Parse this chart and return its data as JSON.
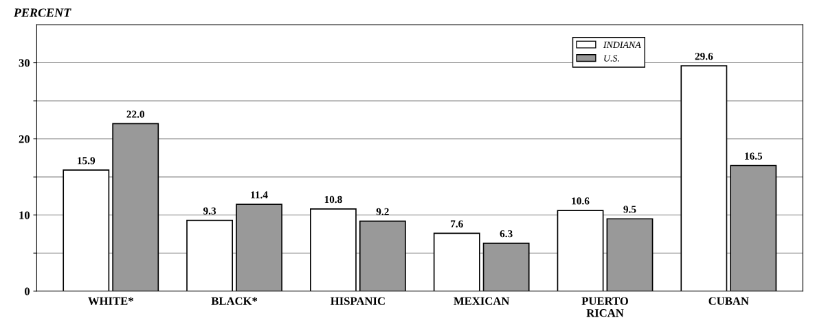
{
  "chart_data": {
    "type": "bar",
    "ylabel": "PERCENT",
    "categories": [
      "WHITE*",
      "BLACK*",
      "HISPANIC",
      "MEXICAN",
      "PUERTO\nRICAN",
      "CUBAN"
    ],
    "series": [
      {
        "name": "INDIANA",
        "color": "#ffffff",
        "values": [
          15.9,
          9.3,
          10.8,
          7.6,
          10.6,
          29.6
        ]
      },
      {
        "name": "U.S.",
        "color": "#999999",
        "values": [
          22.0,
          11.4,
          9.2,
          6.3,
          9.5,
          16.5
        ],
        "value_labels": [
          "22.0",
          "11.4",
          "9.2",
          "6.3",
          "9.5",
          "16.5"
        ]
      }
    ],
    "ylim": [
      0,
      35
    ],
    "yticks": [
      0,
      {
        "value": 5,
        "label": null
      },
      10,
      {
        "value": 15,
        "label": null
      },
      20,
      {
        "value": 25,
        "label": null
      },
      30
    ],
    "grid": "y",
    "legend": "top right",
    "data_labels": true
  }
}
